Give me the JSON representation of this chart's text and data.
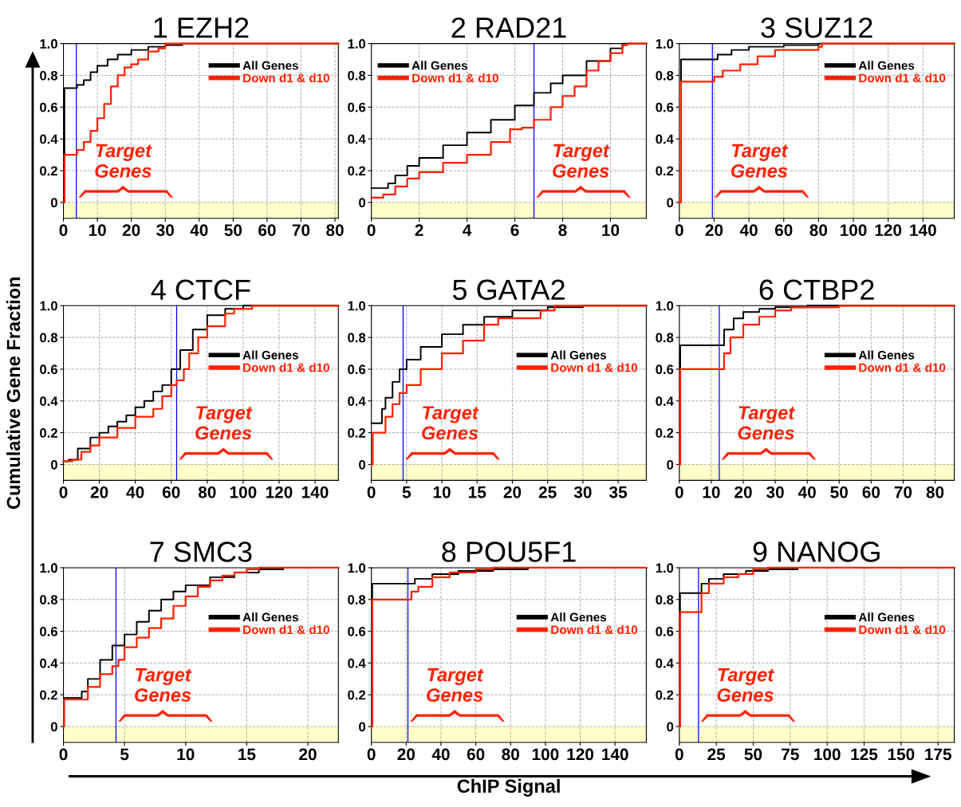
{
  "chart_data": [
    {
      "type": "step",
      "title": "1 EZH2",
      "xlim": [
        0,
        81
      ],
      "xticks": [
        0,
        10,
        20,
        30,
        40,
        50,
        60,
        70,
        80
      ],
      "ylim": [
        -0.1,
        1.0
      ],
      "yticks": [
        0,
        {
          "value": 0.2,
          "label": "0.2"
        },
        {
          "value": 0.4,
          "label": "0.4"
        },
        {
          "value": 0.6,
          "label": "0.6"
        },
        {
          "value": 0.8,
          "label": "0.8"
        },
        {
          "value": 1.0,
          "label": "1.0"
        }
      ],
      "grid": true,
      "legend": "top right",
      "ref_lines": [
        {
          "axis": "x",
          "value": 3.8,
          "color": "#0000ff"
        }
      ],
      "bands": [
        {
          "axis": "y",
          "from": -0.1,
          "to": 0,
          "color": "#ffffc8"
        }
      ],
      "annotations": [
        "Target\nGenes"
      ],
      "series": [
        {
          "name": "All Genes",
          "color": "#000000",
          "x": [
            0,
            0.3,
            3,
            4,
            6,
            8,
            10,
            13,
            16,
            20,
            25,
            30,
            35,
            81
          ],
          "values": [
            0,
            0.72,
            0.72,
            0.74,
            0.77,
            0.82,
            0.86,
            0.9,
            0.93,
            0.96,
            0.98,
            0.99,
            1.0,
            1.0
          ]
        },
        {
          "name": "Down d1 & d10",
          "color": "#ff2000",
          "x": [
            0,
            0.3,
            3.8,
            4,
            6,
            8,
            10,
            12,
            14,
            16,
            18,
            20,
            22,
            25,
            28,
            30,
            81
          ],
          "values": [
            0,
            0.3,
            0.3,
            0.33,
            0.38,
            0.45,
            0.53,
            0.62,
            0.73,
            0.8,
            0.85,
            0.87,
            0.9,
            0.95,
            0.97,
            1.0,
            1.0
          ]
        }
      ]
    },
    {
      "type": "step",
      "title": "2 RAD21",
      "xlim": [
        0,
        11.5
      ],
      "xticks": [
        0,
        2,
        4,
        6,
        8,
        10
      ],
      "ylim": [
        -0.1,
        1.0
      ],
      "yticks": [
        0,
        {
          "value": 0.2,
          "label": "0.2"
        },
        {
          "value": 0.4,
          "label": "0.4"
        },
        {
          "value": 0.6,
          "label": "0.6"
        },
        {
          "value": 0.8,
          "label": "0.8"
        },
        {
          "value": 1.0,
          "label": "1.0"
        }
      ],
      "grid": true,
      "legend": "top left",
      "ref_lines": [
        {
          "axis": "x",
          "value": 6.8,
          "color": "#0000ff"
        }
      ],
      "bands": [
        {
          "axis": "y",
          "from": -0.1,
          "to": 0,
          "color": "#ffffc8"
        }
      ],
      "annotations": [
        "Target\nGenes"
      ],
      "series": [
        {
          "name": "All Genes",
          "color": "#000000",
          "x": [
            0,
            0.5,
            0.7,
            1,
            1.5,
            2,
            3,
            4,
            5,
            6,
            6.8,
            7.5,
            8,
            9,
            10,
            10.5,
            11.5
          ],
          "values": [
            0.09,
            0.09,
            0.12,
            0.17,
            0.23,
            0.28,
            0.36,
            0.44,
            0.52,
            0.61,
            0.69,
            0.75,
            0.8,
            0.89,
            0.97,
            1.0,
            1.0
          ]
        },
        {
          "name": "Down d1 & d10",
          "color": "#ff2000",
          "x": [
            0,
            0.5,
            1,
            1.5,
            2,
            3,
            4,
            5,
            5.8,
            6.3,
            6.8,
            7.5,
            8,
            8.5,
            9,
            9.5,
            10,
            10.5,
            10.7,
            11.5
          ],
          "values": [
            0.03,
            0.05,
            0.1,
            0.15,
            0.19,
            0.25,
            0.3,
            0.38,
            0.46,
            0.47,
            0.52,
            0.6,
            0.67,
            0.73,
            0.83,
            0.89,
            0.94,
            0.99,
            1.0,
            1.0
          ]
        }
      ]
    },
    {
      "type": "step",
      "title": "3 SUZ12",
      "xlim": [
        0,
        158
      ],
      "xticks": [
        0,
        20,
        40,
        60,
        80,
        100,
        120,
        140
      ],
      "ylim": [
        -0.1,
        1.0
      ],
      "yticks": [
        0,
        {
          "value": 0.2,
          "label": "0.2"
        },
        {
          "value": 0.4,
          "label": "0.4"
        },
        {
          "value": 0.6,
          "label": "0.6"
        },
        {
          "value": 0.8,
          "label": "0.8"
        },
        {
          "value": 1.0,
          "label": "1.0"
        }
      ],
      "grid": true,
      "legend": "top right",
      "ref_lines": [
        {
          "axis": "x",
          "value": 19,
          "color": "#0000ff"
        }
      ],
      "bands": [
        {
          "axis": "y",
          "from": -0.1,
          "to": 0,
          "color": "#ffffc8"
        }
      ],
      "annotations": [
        "Target\nGenes"
      ],
      "series": [
        {
          "name": "All Genes",
          "color": "#000000",
          "x": [
            0,
            1,
            18,
            22,
            30,
            40,
            60,
            80,
            158
          ],
          "values": [
            0,
            0.9,
            0.9,
            0.93,
            0.96,
            0.98,
            0.99,
            1.0,
            1.0
          ]
        },
        {
          "name": "Down d1 & d10",
          "color": "#ff2000",
          "x": [
            0,
            1,
            18,
            20,
            25,
            35,
            45,
            55,
            80,
            82,
            158
          ],
          "values": [
            0,
            0.76,
            0.76,
            0.79,
            0.83,
            0.87,
            0.92,
            0.96,
            0.98,
            1.0,
            1.0
          ]
        }
      ]
    },
    {
      "type": "step",
      "title": "4 CTCF",
      "ylabel": "Cumulative Gene Fraction",
      "xlim": [
        0,
        153
      ],
      "xticks": [
        0,
        20,
        40,
        60,
        80,
        100,
        120,
        140
      ],
      "ylim": [
        -0.1,
        1.0
      ],
      "yticks": [
        0,
        {
          "value": 0.2,
          "label": "0.2"
        },
        {
          "value": 0.4,
          "label": "0.4"
        },
        {
          "value": 0.6,
          "label": "0.6"
        },
        {
          "value": 0.8,
          "label": "0.8"
        },
        {
          "value": 1.0,
          "label": "1.0"
        }
      ],
      "grid": true,
      "legend": "center right",
      "ref_lines": [
        {
          "axis": "x",
          "value": 63,
          "color": "#0000ff"
        }
      ],
      "bands": [
        {
          "axis": "y",
          "from": -0.1,
          "to": 0,
          "color": "#ffffc8"
        }
      ],
      "annotations": [
        "Target\nGenes"
      ],
      "series": [
        {
          "name": "All Genes",
          "color": "#000000",
          "x": [
            0,
            3,
            8,
            15,
            20,
            25,
            30,
            35,
            40,
            45,
            50,
            55,
            60,
            65,
            72,
            80,
            90,
            100,
            153
          ],
          "values": [
            0.02,
            0.03,
            0.1,
            0.17,
            0.2,
            0.24,
            0.27,
            0.31,
            0.36,
            0.4,
            0.46,
            0.5,
            0.6,
            0.72,
            0.85,
            0.94,
            0.98,
            1.0,
            1.0
          ]
        },
        {
          "name": "Down d1 & d10",
          "color": "#ff2000",
          "x": [
            0,
            5,
            10,
            15,
            20,
            30,
            40,
            50,
            55,
            60,
            63,
            67,
            70,
            75,
            80,
            90,
            95,
            105,
            153
          ],
          "values": [
            0.02,
            0.03,
            0.08,
            0.12,
            0.17,
            0.23,
            0.3,
            0.35,
            0.43,
            0.5,
            0.53,
            0.6,
            0.7,
            0.8,
            0.87,
            0.95,
            0.98,
            1.0,
            1.0
          ]
        }
      ]
    },
    {
      "type": "step",
      "title": "5 GATA2",
      "xlim": [
        0,
        39
      ],
      "xticks": [
        0,
        5,
        10,
        15,
        20,
        25,
        30,
        35
      ],
      "ylim": [
        -0.1,
        1.0
      ],
      "yticks": [
        0,
        {
          "value": 0.2,
          "label": "0.2"
        },
        {
          "value": 0.4,
          "label": "0.4"
        },
        {
          "value": 0.6,
          "label": "0.6"
        },
        {
          "value": 0.8,
          "label": "0.8"
        },
        {
          "value": 1.0,
          "label": "1.0"
        }
      ],
      "grid": true,
      "legend": "center right",
      "ref_lines": [
        {
          "axis": "x",
          "value": 4.5,
          "color": "#0000ff"
        }
      ],
      "bands": [
        {
          "axis": "y",
          "from": -0.1,
          "to": 0,
          "color": "#ffffc8"
        }
      ],
      "annotations": [
        "Target\nGenes"
      ],
      "series": [
        {
          "name": "All Genes",
          "color": "#000000",
          "x": [
            0,
            1,
            1.5,
            2,
            3,
            4,
            5,
            7,
            10,
            13,
            16,
            20,
            25,
            30,
            39
          ],
          "values": [
            0.26,
            0.26,
            0.35,
            0.42,
            0.52,
            0.6,
            0.66,
            0.74,
            0.82,
            0.88,
            0.93,
            0.97,
            0.99,
            1.0,
            1.0
          ]
        },
        {
          "name": "Down d1 & d10",
          "color": "#ff2000",
          "x": [
            0,
            0.2,
            1,
            2,
            3,
            4,
            5,
            7,
            10,
            13,
            16,
            18,
            22,
            24,
            26,
            39
          ],
          "values": [
            0,
            0.2,
            0.2,
            0.3,
            0.38,
            0.45,
            0.5,
            0.6,
            0.7,
            0.78,
            0.88,
            0.92,
            0.92,
            0.97,
            1.0,
            1.0
          ]
        }
      ]
    },
    {
      "type": "step",
      "title": "6 CTBP2",
      "xlim": [
        0,
        86
      ],
      "xticks": [
        0,
        10,
        20,
        30,
        40,
        50,
        60,
        70,
        80
      ],
      "ylim": [
        -0.1,
        1.0
      ],
      "yticks": [
        0,
        {
          "value": 0.2,
          "label": "0.2"
        },
        {
          "value": 0.4,
          "label": "0.4"
        },
        {
          "value": 0.6,
          "label": "0.6"
        },
        {
          "value": 0.8,
          "label": "0.8"
        },
        {
          "value": 1.0,
          "label": "1.0"
        }
      ],
      "grid": true,
      "legend": "center right",
      "ref_lines": [
        {
          "axis": "x",
          "value": 12.5,
          "color": "#0000ff"
        }
      ],
      "bands": [
        {
          "axis": "y",
          "from": -0.1,
          "to": 0,
          "color": "#ffffc8"
        }
      ],
      "annotations": [
        "Target\nGenes"
      ],
      "series": [
        {
          "name": "All Genes",
          "color": "#000000",
          "x": [
            0,
            0.3,
            12.5,
            14,
            17,
            20,
            25,
            30,
            40,
            86
          ],
          "values": [
            0,
            0.75,
            0.75,
            0.85,
            0.92,
            0.96,
            0.98,
            0.99,
            1.0,
            1.0
          ]
        },
        {
          "name": "Down d1 & d10",
          "color": "#ff2000",
          "x": [
            0,
            0.3,
            12.5,
            14,
            16,
            20,
            25,
            30,
            35,
            50,
            86
          ],
          "values": [
            0,
            0.6,
            0.6,
            0.7,
            0.8,
            0.88,
            0.93,
            0.97,
            0.99,
            1.0,
            1.0
          ]
        }
      ]
    },
    {
      "type": "step",
      "title": "7 SMC3",
      "xlim": [
        0,
        22.5
      ],
      "xticks": [
        0,
        5,
        10,
        15,
        20
      ],
      "ylim": [
        -0.1,
        1.0
      ],
      "yticks": [
        0,
        {
          "value": 0.2,
          "label": "0.2"
        },
        {
          "value": 0.4,
          "label": "0.4"
        },
        {
          "value": 0.6,
          "label": "0.6"
        },
        {
          "value": 0.8,
          "label": "0.8"
        },
        {
          "value": 1.0,
          "label": "1.0"
        }
      ],
      "grid": true,
      "legend": "center right",
      "ref_lines": [
        {
          "axis": "x",
          "value": 4.3,
          "color": "#0000ff"
        }
      ],
      "bands": [
        {
          "axis": "y",
          "from": -0.1,
          "to": 0,
          "color": "#ffffc8"
        }
      ],
      "annotations": [
        "Target\nGenes"
      ],
      "series": [
        {
          "name": "All Genes",
          "color": "#000000",
          "x": [
            0,
            0.05,
            1,
            1.5,
            2,
            3,
            4,
            5,
            6,
            7,
            8,
            9,
            10,
            12,
            14,
            16,
            18,
            22.5
          ],
          "values": [
            0,
            0.18,
            0.18,
            0.22,
            0.3,
            0.42,
            0.51,
            0.58,
            0.66,
            0.73,
            0.8,
            0.85,
            0.89,
            0.94,
            0.97,
            0.99,
            1.0,
            1.0
          ]
        },
        {
          "name": "Down d1 & d10",
          "color": "#ff2000",
          "x": [
            0,
            0.05,
            1,
            2,
            3,
            4,
            4.5,
            5,
            6,
            7,
            8,
            9,
            10,
            11,
            12,
            13,
            14,
            15,
            16,
            22.5
          ],
          "values": [
            0,
            0.17,
            0.17,
            0.25,
            0.33,
            0.38,
            0.42,
            0.5,
            0.56,
            0.62,
            0.68,
            0.76,
            0.82,
            0.88,
            0.92,
            0.95,
            0.97,
            0.99,
            1.0,
            1.0
          ]
        }
      ]
    },
    {
      "type": "step",
      "title": "8 POU5F1",
      "xlabel": "ChIP Signal",
      "xlim": [
        0,
        158
      ],
      "xticks": [
        0,
        20,
        40,
        60,
        80,
        100,
        120,
        140
      ],
      "ylim": [
        -0.1,
        1.0
      ],
      "yticks": [
        0,
        {
          "value": 0.2,
          "label": "0.2"
        },
        {
          "value": 0.4,
          "label": "0.4"
        },
        {
          "value": 0.6,
          "label": "0.6"
        },
        {
          "value": 0.8,
          "label": "0.8"
        },
        {
          "value": 1.0,
          "label": "1.0"
        }
      ],
      "grid": true,
      "legend": "center right",
      "ref_lines": [
        {
          "axis": "x",
          "value": 21,
          "color": "#0000ff"
        }
      ],
      "bands": [
        {
          "axis": "y",
          "from": -0.1,
          "to": 0,
          "color": "#ffffc8"
        }
      ],
      "annotations": [
        "Target\nGenes"
      ],
      "series": [
        {
          "name": "All Genes",
          "color": "#000000",
          "x": [
            0,
            0.5,
            20,
            25,
            35,
            50,
            70,
            90,
            158
          ],
          "values": [
            0,
            0.9,
            0.9,
            0.93,
            0.96,
            0.98,
            0.99,
            1.0,
            1.0
          ]
        },
        {
          "name": "Down d1 & d10",
          "color": "#ff2000",
          "x": [
            0,
            0.5,
            21,
            23,
            27,
            35,
            45,
            60,
            70,
            158
          ],
          "values": [
            0,
            0.8,
            0.8,
            0.85,
            0.88,
            0.94,
            0.97,
            0.99,
            1.0,
            1.0
          ]
        }
      ]
    },
    {
      "type": "step",
      "title": "9 NANOG",
      "xlim": [
        0,
        186
      ],
      "xticks": [
        0,
        25,
        50,
        75,
        100,
        125,
        150,
        175
      ],
      "ylim": [
        -0.1,
        1.0
      ],
      "yticks": [
        0,
        {
          "value": 0.2,
          "label": "0.2"
        },
        {
          "value": 0.4,
          "label": "0.4"
        },
        {
          "value": 0.6,
          "label": "0.6"
        },
        {
          "value": 0.8,
          "label": "0.8"
        },
        {
          "value": 1.0,
          "label": "1.0"
        }
      ],
      "grid": true,
      "legend": "center right",
      "ref_lines": [
        {
          "axis": "x",
          "value": 13,
          "color": "#0000ff"
        }
      ],
      "bands": [
        {
          "axis": "y",
          "from": -0.1,
          "to": 0,
          "color": "#ffffc8"
        }
      ],
      "annotations": [
        "Target\nGenes"
      ],
      "series": [
        {
          "name": "All Genes",
          "color": "#000000",
          "x": [
            0,
            0.5,
            13,
            15,
            20,
            30,
            45,
            60,
            80,
            186
          ],
          "values": [
            0,
            0.84,
            0.84,
            0.9,
            0.93,
            0.96,
            0.98,
            0.99,
            1.0,
            1.0
          ]
        },
        {
          "name": "Down d1 & d10",
          "color": "#ff2000",
          "x": [
            0,
            0.5,
            13,
            15,
            20,
            30,
            40,
            50,
            60,
            186
          ],
          "values": [
            0,
            0.72,
            0.72,
            0.84,
            0.9,
            0.94,
            0.96,
            0.99,
            1.0,
            1.0
          ]
        }
      ]
    }
  ]
}
